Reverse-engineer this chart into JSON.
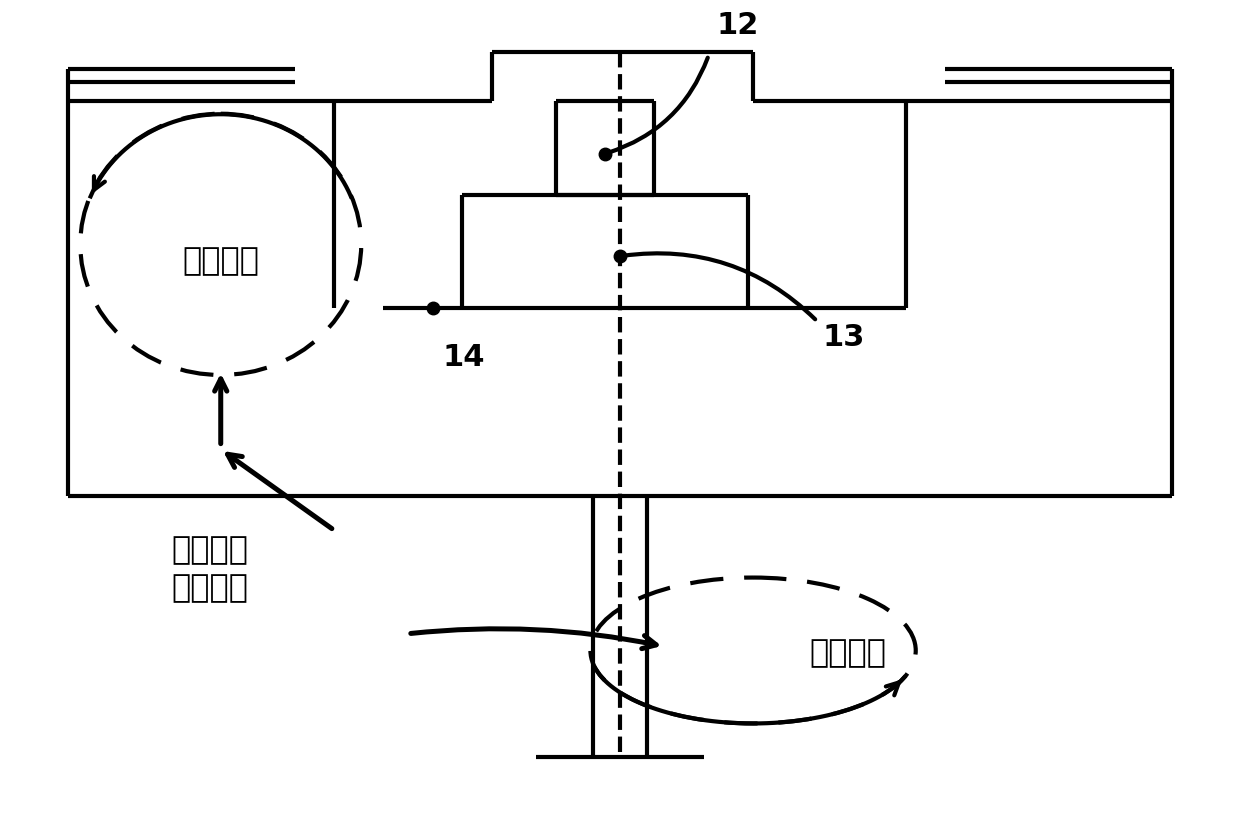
{
  "background_color": "#ffffff",
  "line_color": "#000000",
  "line_width": 3.0,
  "fig_width": 12.39,
  "fig_height": 8.4,
  "label_12": "12",
  "label_13": "13",
  "label_14": "14",
  "text_pitch": "俰仰运动",
  "text_rotation": "回转运动",
  "text_existing": "已有二转\n转台实现"
}
